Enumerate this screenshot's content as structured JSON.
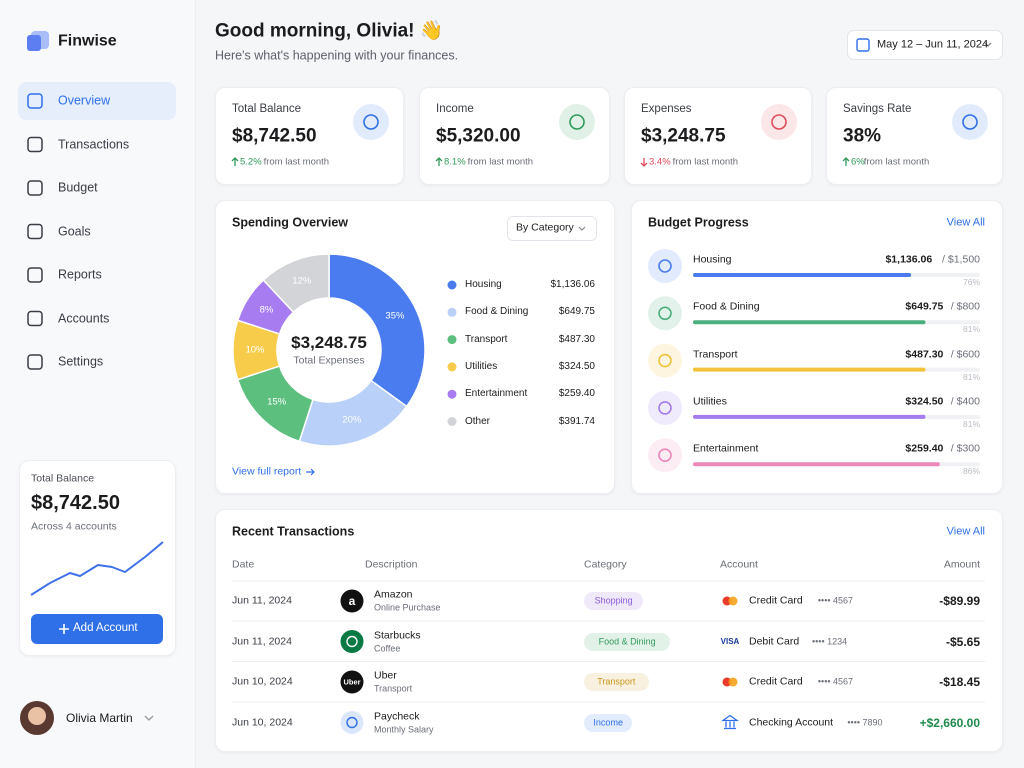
{
  "brand": "Finwise",
  "nav": [
    {
      "label": "Overview",
      "active": true
    },
    {
      "label": "Transactions"
    },
    {
      "label": "Budget"
    },
    {
      "label": "Goals"
    },
    {
      "label": "Reports"
    },
    {
      "label": "Accounts"
    },
    {
      "label": "Settings"
    }
  ],
  "sidebar_card": {
    "label": "Total Balance",
    "value": "$8,742.50",
    "note": "Across 4 accounts",
    "button": "Add Account"
  },
  "user": {
    "name": "Olivia Martin"
  },
  "header": {
    "greeting": "Good morning, Olivia! 👋",
    "subtitle": "Here's what's happening with your finances.",
    "date_range": "May 12 – Jun 11, 2024"
  },
  "stats": [
    {
      "label": "Total Balance",
      "value": "$8,742.50",
      "change": "5.2%",
      "change_note": "from last month",
      "direction": "up",
      "color": "#2f6fe8"
    },
    {
      "label": "Income",
      "value": "$5,320.00",
      "change": "8.1%",
      "change_note": "from last month",
      "direction": "up",
      "color": "#2f9a5a"
    },
    {
      "label": "Expenses",
      "value": "$3,248.75",
      "change": "3.4%",
      "change_note": "from last month",
      "direction": "down",
      "color": "#e04b5a"
    },
    {
      "label": "Savings Rate",
      "value": "38%",
      "change": "6%",
      "change_note": "from last month",
      "direction": "up",
      "color": "#2f6fe8"
    }
  ],
  "spending": {
    "title": "Spending Overview",
    "dropdown": "By Category",
    "center_value": "$3,248.75",
    "center_label": "Total Expenses",
    "link": "View full report",
    "type": "pie",
    "segments": [
      {
        "name": "Housing",
        "amount": "$1,136.06",
        "value": 35,
        "value_label": "35%",
        "color": "#4a7cf0"
      },
      {
        "name": "Food & Dining",
        "amount": "$649.75",
        "value": 20,
        "value_label": "20%",
        "color": "#b9d0f9"
      },
      {
        "name": "Transport",
        "amount": "$487.30",
        "value": 15,
        "value_label": "15%",
        "color": "#5cbf7e"
      },
      {
        "name": "Utilities",
        "amount": "$324.50",
        "value": 10,
        "value_label": "10%",
        "color": "#f7cc4a"
      },
      {
        "name": "Entertainment",
        "amount": "$259.40",
        "value": 8,
        "value_label": "8%",
        "color": "#a77cf0"
      },
      {
        "name": "Other",
        "amount": "$391.74",
        "value": 12,
        "value_label": "12%",
        "color": "#d3d4d8"
      }
    ]
  },
  "budget": {
    "title": "Budget Progress",
    "link": "View All",
    "items": [
      {
        "name": "Housing",
        "spent": "$1,136.06",
        "limit": "/ $1,500",
        "progress": {
          "value": 76,
          "label": "76%"
        },
        "color": "#4a7cf0"
      },
      {
        "name": "Food & Dining",
        "spent": "$649.75",
        "limit": "/ $800",
        "progress": {
          "value": 81,
          "label": "81%"
        },
        "color": "#4caf7d"
      },
      {
        "name": "Transport",
        "spent": "$487.30",
        "limit": "/ $600",
        "progress": {
          "value": 81,
          "label": "81%"
        },
        "color": "#f2c23a"
      },
      {
        "name": "Utilities",
        "spent": "$324.50",
        "limit": "/ $400",
        "progress": {
          "value": 81,
          "label": "81%"
        },
        "color": "#a47cf0"
      },
      {
        "name": "Entertainment",
        "spent": "$259.40",
        "limit": "/ $300",
        "progress": {
          "value": 86,
          "label": "86%"
        },
        "color": "#ee88bb"
      }
    ]
  },
  "transactions": {
    "title": "Recent Transactions",
    "link": "View All",
    "columns": [
      "Date",
      "Description",
      "Category",
      "Account",
      "Amount"
    ],
    "rows": [
      {
        "date": "Jun 11, 2024",
        "logo": "a",
        "logo_color": "#111111",
        "name": "Amazon",
        "sub": "Online Purchase",
        "category": "Shopping",
        "category_color": "#8a5ad6",
        "account_icon": "mastercard",
        "account": "Credit Card",
        "card": "•••• 4567",
        "amount": "-$89.99",
        "amount_color": "#1c1c1e"
      },
      {
        "date": "Jun 11, 2024",
        "logo_color": "#0a7a44",
        "name": "Starbucks",
        "sub": "Coffee",
        "category": "Food & Dining",
        "category_color": "#2f9a5a",
        "account_icon": "visa",
        "network": "VISA",
        "account": "Debit Card",
        "card": "•••• 1234",
        "amount": "-$5.65",
        "amount_color": "#1c1c1e"
      },
      {
        "date": "Jun 10, 2024",
        "logo": "Uber",
        "logo_color": "#111111",
        "name": "Uber",
        "sub": "Transport",
        "category": "Transport",
        "category_color": "#c9951a",
        "account_icon": "mastercard",
        "account": "Credit Card",
        "card": "•••• 4567",
        "amount": "-$18.45",
        "amount_color": "#1c1c1e"
      },
      {
        "date": "Jun 10, 2024",
        "logo_color": "#dbe6fb",
        "name": "Paycheck",
        "sub": "Monthly Salary",
        "category": "Income",
        "category_color": "#2f6fe8",
        "account_icon": "bank",
        "account": "Checking Account",
        "card": "•••• 7890",
        "amount": "+$2,660.00",
        "amount_color": "#1f8a4c"
      }
    ]
  }
}
